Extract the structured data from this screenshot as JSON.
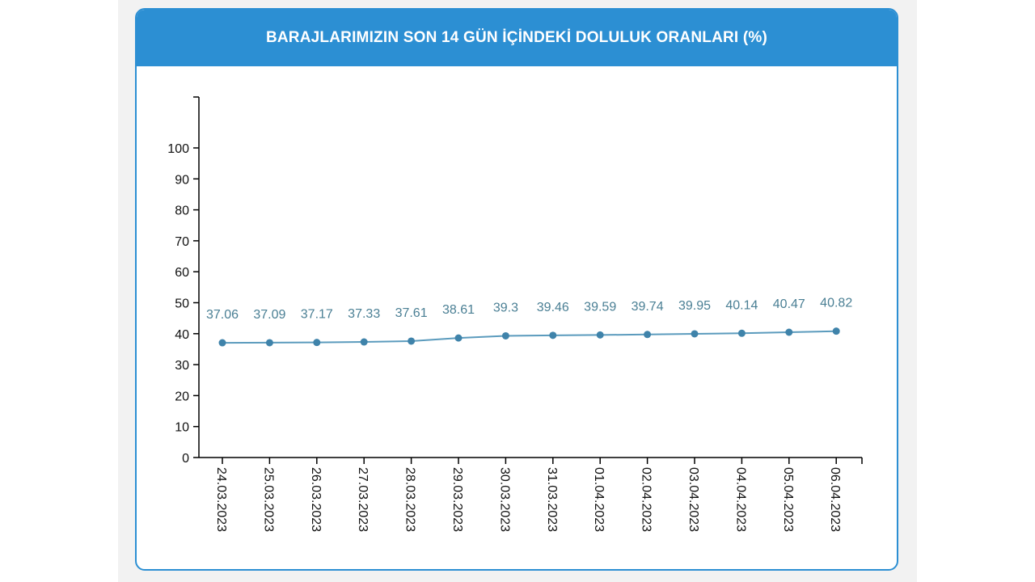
{
  "header": {
    "title": "BARAJLARIMIZIN SON 14 GÜN İÇİNDEKİ DOLULUK ORANLARI (%)"
  },
  "colors": {
    "header_bg": "#2c8fd3",
    "line": "#5b9bbd",
    "marker": "#3f83aa",
    "data_label": "#4a7f94",
    "axis": "#000000"
  },
  "chart_data": {
    "type": "line",
    "title": "BARAJLARIMIZIN SON 14 GÜN İÇİNDEKİ DOLULUK ORANLARI (%)",
    "xlabel": "",
    "ylabel": "",
    "categories": [
      "24.03.2023",
      "25.03.2023",
      "26.03.2023",
      "27.03.2023",
      "28.03.2023",
      "29.03.2023",
      "30.03.2023",
      "31.03.2023",
      "01.04.2023",
      "02.04.2023",
      "03.04.2023",
      "04.04.2023",
      "05.04.2023",
      "06.04.2023"
    ],
    "values": [
      37.06,
      37.09,
      37.17,
      37.33,
      37.61,
      38.61,
      39.3,
      39.46,
      39.59,
      39.74,
      39.95,
      40.14,
      40.47,
      40.82
    ],
    "data_labels": [
      "37.06",
      "37.09",
      "37.17",
      "37.33",
      "37.61",
      "38.61",
      "39.3",
      "39.46",
      "39.59",
      "39.74",
      "39.95",
      "40.14",
      "40.47",
      "40.82"
    ],
    "yticks": [
      "0",
      "10",
      "20",
      "30",
      "40",
      "50",
      "60",
      "70",
      "80",
      "90",
      "100"
    ],
    "ylim": [
      0,
      116
    ],
    "grid": false,
    "legend": "none"
  }
}
